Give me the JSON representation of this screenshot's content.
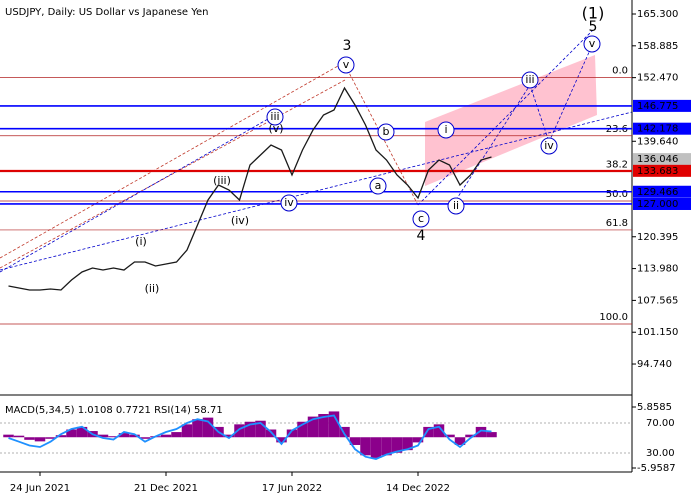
{
  "chart_data": [
    {
      "type": "line",
      "title": "USDJPY, Daily:  US Dollar vs Japanese Yen",
      "categories": [
        null,
        null,
        null,
        "24 Jun 2021",
        null,
        null,
        null,
        null,
        null,
        null,
        null,
        null,
        null,
        null,
        null,
        "21 Dec 2021",
        null,
        null,
        null,
        null,
        null,
        null,
        null,
        null,
        null,
        null,
        null,
        "17 Jun 2022",
        null,
        null,
        null,
        null,
        null,
        null,
        null,
        null,
        null,
        null,
        null,
        "14 Dec 2022",
        null,
        null,
        null,
        null,
        null,
        null,
        null
      ],
      "values": [
        110.46,
        110.06,
        109.66,
        109.66,
        109.86,
        109.66,
        111.67,
        113.29,
        114.09,
        113.69,
        114.09,
        113.69,
        115.3,
        115.3,
        114.5,
        114.9,
        115.3,
        117.72,
        122.76,
        127.8,
        130.83,
        129.82,
        127.8,
        134.86,
        136.87,
        138.89,
        137.88,
        132.84,
        137.88,
        141.91,
        144.94,
        145.95,
        150.38,
        146.95,
        142.92,
        137.88,
        135.87,
        132.84,
        130.83,
        128.21,
        133.85,
        135.87,
        134.86,
        130.83,
        132.84,
        135.87,
        136.47
      ],
      "color": "#1a1a1a",
      "ylim": [
        89.1,
        168.12
      ],
      "yticks": [
        {
          "value": 165.3,
          "label": "165.300"
        },
        {
          "value": 158.885,
          "label": "158.885"
        },
        {
          "value": 152.47,
          "label": "152.470"
        },
        {
          "value": 139.64,
          "label": "139.640"
        },
        {
          "value": 120.395,
          "label": "120.395"
        },
        {
          "value": 113.98,
          "label": "113.980"
        },
        {
          "value": 107.565,
          "label": "107.565"
        },
        {
          "value": 101.15,
          "label": "101.150"
        },
        {
          "value": 94.74,
          "label": "94.740"
        }
      ],
      "price_levels": [
        {
          "value": 146.775,
          "label": "146.775",
          "color": "#0000ff",
          "line": true
        },
        {
          "value": 142.178,
          "label": "142.178",
          "color": "#0000ff",
          "line": true
        },
        {
          "value": 136.046,
          "label": "136.046",
          "color": "#c0c0c0",
          "line": false
        },
        {
          "value": 133.683,
          "label": "133.683",
          "color": "#e00000",
          "line": true
        },
        {
          "value": 129.466,
          "label": "129.466",
          "color": "#0000ff",
          "line": true
        },
        {
          "value": 127.0,
          "label": "127.000",
          "color": "#0000ff",
          "line": true
        }
      ],
      "fib_levels": [
        {
          "value": 152.47,
          "label": "0.0"
        },
        {
          "value": 140.75,
          "label": "23.6"
        },
        {
          "value": 133.5,
          "label": "38.2"
        },
        {
          "value": 127.6,
          "label": "50.0"
        },
        {
          "value": 121.77,
          "label": "61.8"
        },
        {
          "value": 102.8,
          "label": "100.0"
        }
      ],
      "fib_color": "#b22222",
      "waves": [
        {
          "text": "(1)",
          "color": "#008000",
          "circled": false
        },
        {
          "text": "5",
          "color": "#c0392b",
          "circled": false
        },
        {
          "text": "3",
          "color": "#c0392b",
          "circled": false
        },
        {
          "text": "4",
          "color": "#c0392b",
          "circled": false
        },
        {
          "text": "v",
          "color": "#0000cc",
          "circled": true
        },
        {
          "text": "v",
          "color": "#0000cc",
          "circled": true
        },
        {
          "text": "iii",
          "color": "#0000cc",
          "circled": true
        },
        {
          "text": "iii",
          "color": "#0000cc",
          "circled": true
        },
        {
          "text": "iv",
          "color": "#0000cc",
          "circled": true
        },
        {
          "text": "iv",
          "color": "#0000cc",
          "circled": true
        },
        {
          "text": "i",
          "color": "#0000cc",
          "circled": true
        },
        {
          "text": "ii",
          "color": "#0000cc",
          "circled": true
        },
        {
          "text": "a",
          "color": "#0000cc",
          "circled": true
        },
        {
          "text": "b",
          "color": "#0000cc",
          "circled": true
        },
        {
          "text": "c",
          "color": "#0000cc",
          "circled": true
        },
        {
          "text": "(i)",
          "color": "#e03030",
          "circled": false
        },
        {
          "text": "(ii)",
          "color": "#e03030",
          "circled": false
        },
        {
          "text": "(iii)",
          "color": "#e03030",
          "circled": false
        },
        {
          "text": "(iv)",
          "color": "#e03030",
          "circled": false
        },
        {
          "text": "(v)",
          "color": "#e03030",
          "circled": false
        }
      ]
    },
    {
      "type": "bar",
      "title": "MACD(5,34,5) 1.0108 0.7721 RSI(14) 58.71",
      "values": [
        0.5,
        0.3,
        -0.5,
        -0.8,
        -0.3,
        0.4,
        1.5,
        2.0,
        1.2,
        0.5,
        0.2,
        0.8,
        0.5,
        -0.3,
        0.2,
        0.5,
        1.0,
        2.5,
        3.5,
        3.8,
        2.0,
        0.5,
        2.5,
        3.0,
        3.2,
        1.5,
        -1.0,
        1.5,
        3.0,
        4.0,
        4.5,
        5.0,
        2.0,
        -1.5,
        -3.5,
        -4.0,
        -3.5,
        -3.0,
        -2.5,
        -1.0,
        2.0,
        2.5,
        0.5,
        -1.5,
        0.5,
        2.0,
        1.0
      ],
      "color": "#8b008b",
      "ylim": [
        -5.9587,
        5.8585
      ],
      "yticks": [
        5.8585,
        -5.9587
      ],
      "rsi": {
        "values": [
          50,
          45,
          40,
          38,
          45,
          55,
          62,
          65,
          55,
          50,
          48,
          58,
          55,
          45,
          52,
          58,
          62,
          70,
          75,
          72,
          58,
          50,
          62,
          68,
          70,
          58,
          42,
          60,
          68,
          75,
          78,
          80,
          55,
          35,
          25,
          22,
          28,
          32,
          35,
          40,
          62,
          65,
          48,
          38,
          50,
          60,
          58.71
        ],
        "color": "#1e90ff",
        "axis": "y2"
      },
      "y2lim": [
        10,
        91.33
      ],
      "y2ticks": [
        {
          "value": 70,
          "label": "70.00"
        },
        {
          "value": 30,
          "label": "30.00"
        }
      ]
    }
  ]
}
